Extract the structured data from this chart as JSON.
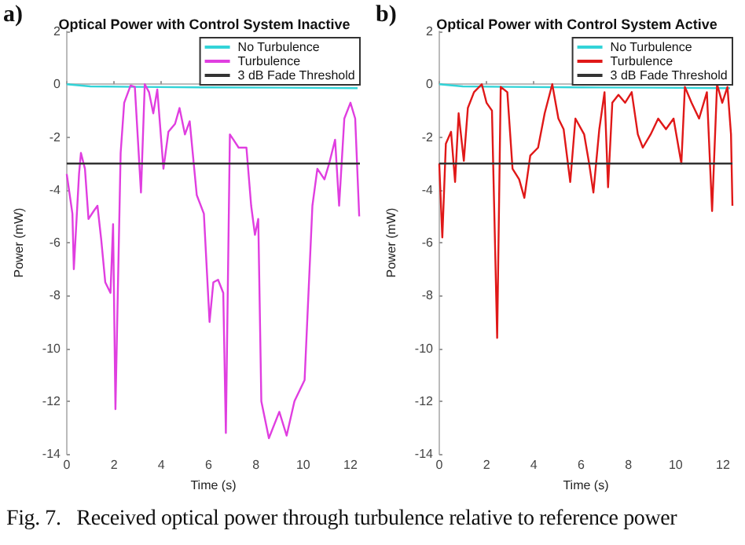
{
  "chart_data": [
    {
      "type": "line",
      "title": "Optical Power with Control System Inactive",
      "xlabel": "Time (s)",
      "ylabel": "Power (mW)",
      "annotations": [
        "a)",
        "Fig. 7.   Received optical power through turbulence relative to reference power"
      ],
      "xlim": [
        0,
        12.4
      ],
      "xticks": [
        0,
        2,
        4,
        6,
        8,
        10,
        12
      ],
      "ylim": [
        -14,
        2
      ],
      "yticks": [
        -14,
        -12,
        -10,
        -8,
        -6,
        -4,
        -2,
        0,
        2
      ],
      "legend": "top right",
      "marker": "none",
      "line_style": "solid",
      "series": [
        {
          "name": "No Turbulence",
          "color": "#33d4d8",
          "x": [
            0,
            1,
            3,
            6,
            9,
            12.3
          ],
          "values": [
            0,
            -0.08,
            -0.1,
            -0.12,
            -0.13,
            -0.15
          ]
        },
        {
          "name": "Turbulence",
          "color": "#e03ee0",
          "x": [
            0,
            0.24,
            0.3,
            0.52,
            0.6,
            0.77,
            0.92,
            1.14,
            1.3,
            1.46,
            1.63,
            1.85,
            1.96,
            2.06,
            2.28,
            2.43,
            2.7,
            2.88,
            3.14,
            3.3,
            3.48,
            3.66,
            3.83,
            4.09,
            4.3,
            4.58,
            4.77,
            5.0,
            5.2,
            5.5,
            5.8,
            6.04,
            6.2,
            6.4,
            6.62,
            6.73,
            6.9,
            7.05,
            7.27,
            7.6,
            7.8,
            7.96,
            8.1,
            8.23,
            8.55,
            8.99,
            9.3,
            9.63,
            10.06,
            10.39,
            10.6,
            10.9,
            11.1,
            11.35,
            11.52,
            11.74,
            12.0,
            12.2,
            12.37
          ],
          "values": [
            -3.4,
            -4.9,
            -7.0,
            -3.4,
            -2.6,
            -3.2,
            -5.1,
            -4.8,
            -4.6,
            -5.9,
            -7.5,
            -7.9,
            -5.3,
            -12.3,
            -2.6,
            -0.7,
            -0.05,
            -0.1,
            -4.1,
            0,
            -0.3,
            -1.1,
            -0.2,
            -3.2,
            -1.8,
            -1.5,
            -0.9,
            -1.9,
            -1.4,
            -4.2,
            -4.9,
            -9.0,
            -7.5,
            -7.4,
            -7.9,
            -13.2,
            -1.9,
            -2.1,
            -2.4,
            -2.4,
            -4.6,
            -5.7,
            -5.1,
            -12.0,
            -13.4,
            -12.4,
            -13.3,
            -12.0,
            -11.2,
            -4.6,
            -3.2,
            -3.6,
            -3.0,
            -2.1,
            -4.6,
            -1.3,
            -0.7,
            -1.3,
            -5.0
          ]
        },
        {
          "name": "3 dB Fade Threshold",
          "color": "#333333",
          "x": [
            0,
            12.4
          ],
          "values": [
            -3,
            -3
          ]
        }
      ]
    },
    {
      "type": "line",
      "title": "Optical Power with Control System Active",
      "xlabel": "Time (s)",
      "ylabel": "Power (mW)",
      "annotations": [
        "b)"
      ],
      "xlim": [
        0,
        12.4
      ],
      "xticks": [
        0,
        2,
        4,
        6,
        8,
        10,
        12
      ],
      "ylim": [
        -14,
        2
      ],
      "yticks": [
        -14,
        -12,
        -10,
        -8,
        -6,
        -4,
        -2,
        0,
        2
      ],
      "legend": "top right",
      "marker": "none",
      "line_style": "solid",
      "series": [
        {
          "name": "No Turbulence",
          "color": "#33d4d8",
          "x": [
            0,
            1,
            3,
            6,
            9,
            12.3
          ],
          "values": [
            0,
            -0.08,
            -0.1,
            -0.12,
            -0.13,
            -0.15
          ]
        },
        {
          "name": "Turbulence",
          "color": "#e01818",
          "x": [
            0,
            0.13,
            0.28,
            0.5,
            0.67,
            0.82,
            1.04,
            1.21,
            1.47,
            1.8,
            2.0,
            2.23,
            2.45,
            2.6,
            2.88,
            3.1,
            3.38,
            3.6,
            3.85,
            4.18,
            4.46,
            4.78,
            5.04,
            5.26,
            5.54,
            5.76,
            6.13,
            6.34,
            6.52,
            6.77,
            6.99,
            7.14,
            7.32,
            7.58,
            7.86,
            8.14,
            8.4,
            8.61,
            8.94,
            9.26,
            9.59,
            9.91,
            10.24,
            10.39,
            10.67,
            10.99,
            11.32,
            11.54,
            11.75,
            11.97,
            12.19,
            12.34,
            12.4
          ],
          "values": [
            -3.0,
            -5.8,
            -2.25,
            -1.8,
            -3.7,
            -1.1,
            -2.9,
            -0.9,
            -0.3,
            0,
            -0.7,
            -1.0,
            -9.6,
            -0.1,
            -0.3,
            -3.2,
            -3.6,
            -4.3,
            -2.7,
            -2.4,
            -1.1,
            0,
            -1.3,
            -1.7,
            -3.7,
            -1.3,
            -1.9,
            -3.0,
            -4.1,
            -1.7,
            -0.3,
            -3.9,
            -0.7,
            -0.4,
            -0.7,
            -0.3,
            -1.9,
            -2.4,
            -1.9,
            -1.3,
            -1.7,
            -1.3,
            -3.0,
            -0.1,
            -0.7,
            -1.3,
            -0.3,
            -4.8,
            0,
            -0.7,
            -0.1,
            -1.9,
            -4.6
          ]
        },
        {
          "name": "3 dB Fade Threshold",
          "color": "#333333",
          "x": [
            0,
            12.4
          ],
          "values": [
            -3,
            -3
          ]
        }
      ]
    }
  ]
}
